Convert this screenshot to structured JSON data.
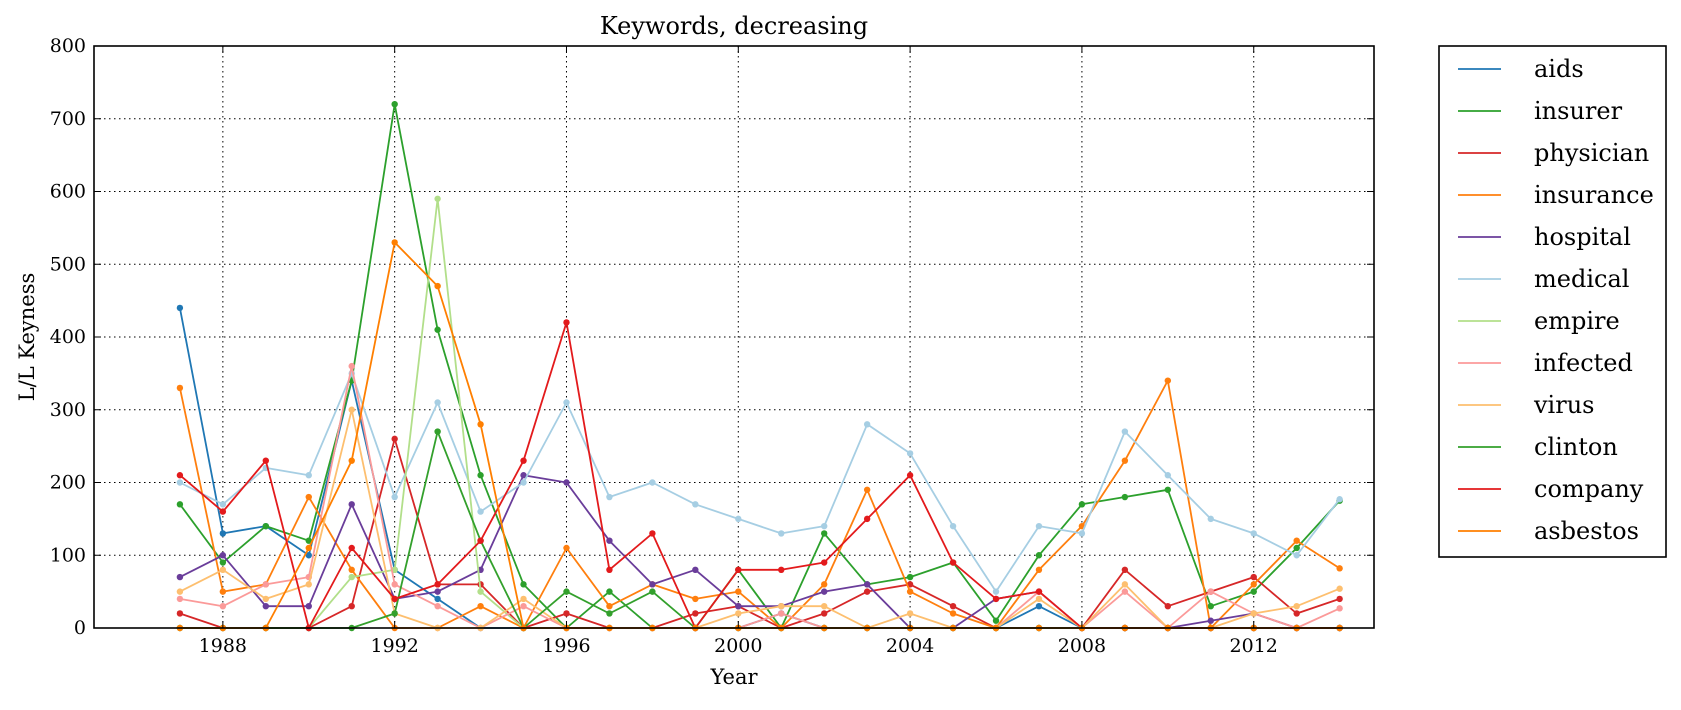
{
  "chart_data": {
    "type": "line",
    "title": "Keywords, decreasing",
    "xlabel": "Year",
    "ylabel": "L/L Keyness",
    "xlim": [
      1985,
      2014.8
    ],
    "ylim": [
      0,
      800
    ],
    "xticks": [
      1988,
      1992,
      1996,
      2000,
      2004,
      2008,
      2012
    ],
    "yticks": [
      0,
      100,
      200,
      300,
      400,
      500,
      600,
      700,
      800
    ],
    "grid": true,
    "grid_style": "dotted",
    "legend_position": "outside-right",
    "x": [
      1987,
      1988,
      1989,
      1990,
      1991,
      1992,
      1993,
      1994,
      1995,
      1996,
      1997,
      1998,
      1999,
      2000,
      2001,
      2002,
      2003,
      2004,
      2005,
      2006,
      2007,
      2008,
      2009,
      2010,
      2011,
      2012,
      2013,
      2014
    ],
    "series": [
      {
        "name": "aids",
        "color": "#1f77b4",
        "values": [
          440,
          130,
          140,
          100,
          340,
          80,
          40,
          0,
          0,
          0,
          0,
          0,
          0,
          0,
          20,
          0,
          0,
          0,
          0,
          0,
          30,
          0,
          0,
          0,
          0,
          0,
          0,
          0
        ]
      },
      {
        "name": "insurer",
        "color": "#2ca02c",
        "values": [
          170,
          90,
          140,
          120,
          340,
          720,
          410,
          210,
          60,
          0,
          50,
          0,
          0,
          80,
          0,
          130,
          60,
          70,
          90,
          10,
          100,
          170,
          180,
          190,
          30,
          50,
          110,
          175
        ]
      },
      {
        "name": "physician",
        "color": "#d62728",
        "values": [
          20,
          0,
          0,
          0,
          30,
          260,
          60,
          60,
          0,
          20,
          0,
          0,
          20,
          30,
          0,
          20,
          50,
          60,
          30,
          0,
          0,
          0,
          80,
          30,
          50,
          70,
          20,
          40
        ]
      },
      {
        "name": "insurance",
        "color": "#ff7f0e",
        "values": [
          330,
          50,
          60,
          180,
          80,
          0,
          0,
          30,
          0,
          110,
          30,
          60,
          40,
          50,
          0,
          60,
          190,
          50,
          20,
          0,
          80,
          140,
          230,
          340,
          0,
          60,
          120,
          82
        ]
      },
      {
        "name": "hospital",
        "color": "#6a3d9a",
        "values": [
          70,
          100,
          30,
          30,
          170,
          40,
          50,
          80,
          210,
          200,
          120,
          60,
          80,
          30,
          30,
          50,
          60,
          0,
          0,
          40,
          50,
          0,
          0,
          0,
          10,
          20,
          0,
          0
        ]
      },
      {
        "name": "medical",
        "color": "#a6cee3",
        "values": [
          200,
          170,
          220,
          210,
          350,
          180,
          310,
          160,
          200,
          310,
          180,
          200,
          170,
          150,
          130,
          140,
          280,
          240,
          140,
          50,
          140,
          130,
          270,
          210,
          150,
          130,
          100,
          177
        ]
      },
      {
        "name": "empire",
        "color": "#b2df8a",
        "values": [
          0,
          0,
          0,
          0,
          70,
          80,
          590,
          50,
          0,
          0,
          0,
          0,
          0,
          0,
          0,
          0,
          0,
          0,
          0,
          0,
          0,
          0,
          0,
          0,
          0,
          0,
          0,
          0
        ]
      },
      {
        "name": "infected",
        "color": "#fb9a99",
        "values": [
          40,
          30,
          60,
          70,
          360,
          60,
          30,
          0,
          30,
          0,
          0,
          0,
          0,
          0,
          20,
          0,
          0,
          0,
          0,
          0,
          50,
          0,
          50,
          0,
          50,
          20,
          0,
          27
        ]
      },
      {
        "name": "virus",
        "color": "#fdbf6f",
        "values": [
          50,
          80,
          40,
          60,
          300,
          20,
          0,
          0,
          40,
          0,
          0,
          0,
          0,
          20,
          30,
          30,
          0,
          20,
          0,
          0,
          40,
          0,
          60,
          0,
          0,
          20,
          30,
          54
        ]
      },
      {
        "name": "clinton",
        "color": "#33a02c",
        "values": [
          0,
          0,
          0,
          0,
          0,
          20,
          270,
          120,
          0,
          50,
          20,
          50,
          0,
          0,
          0,
          0,
          0,
          0,
          0,
          0,
          0,
          0,
          0,
          0,
          0,
          0,
          0,
          0
        ]
      },
      {
        "name": "company",
        "color": "#e31a1c",
        "values": [
          210,
          160,
          230,
          0,
          110,
          40,
          60,
          120,
          230,
          420,
          80,
          130,
          0,
          80,
          80,
          90,
          150,
          210,
          90,
          40,
          50,
          0,
          0,
          0,
          0,
          0,
          0,
          0
        ]
      },
      {
        "name": "asbestos",
        "color": "#ff7f00",
        "values": [
          0,
          0,
          0,
          110,
          230,
          530,
          470,
          280,
          0,
          0,
          0,
          0,
          0,
          0,
          0,
          0,
          0,
          0,
          0,
          0,
          0,
          0,
          0,
          0,
          0,
          0,
          0,
          0
        ]
      }
    ]
  }
}
